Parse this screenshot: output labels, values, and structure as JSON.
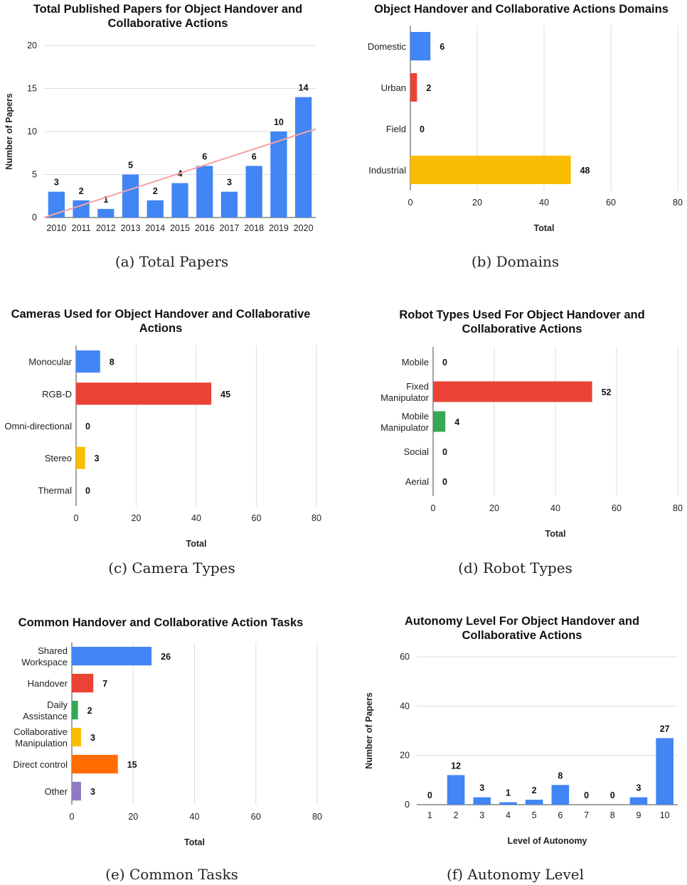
{
  "chart_data": [
    {
      "id": "a",
      "type": "bar",
      "orientation": "vertical",
      "title": [
        "Total Published Papers for Object Handover and",
        "Collaborative Actions"
      ],
      "ylabel": "Number of Papers",
      "xlabel": "",
      "categories": [
        "2010",
        "2011",
        "2012",
        "2013",
        "2014",
        "2015",
        "2016",
        "2017",
        "2018",
        "2019",
        "2020"
      ],
      "values": [
        3,
        2,
        1,
        5,
        2,
        4,
        6,
        3,
        6,
        10,
        14
      ],
      "ylim": [
        0,
        20
      ],
      "yticks": [
        0,
        5,
        10,
        15,
        20
      ],
      "colors": [
        "#4285F4"
      ],
      "trendline": {
        "type": "linear",
        "color": "#F4A3A3",
        "start": 0,
        "end": 10.3
      },
      "caption": "(a) Total Papers",
      "grid": true
    },
    {
      "id": "b",
      "type": "bar",
      "orientation": "horizontal",
      "title": [
        "Object Handover and Collaborative Actions Domains"
      ],
      "xlabel": "Total",
      "categories": [
        [
          "Domestic"
        ],
        [
          "Urban"
        ],
        [
          "Field"
        ],
        [
          "Industrial"
        ]
      ],
      "values": [
        6,
        2,
        0,
        48
      ],
      "xlim": [
        0,
        80
      ],
      "xticks": [
        0,
        20,
        40,
        60,
        80
      ],
      "colors": [
        "#4285F4",
        "#EA4335",
        "#34A853",
        "#FBBC04"
      ],
      "caption": "(b) Domains",
      "grid": true
    },
    {
      "id": "c",
      "type": "bar",
      "orientation": "horizontal",
      "title": [
        "Cameras Used for Object Handover and Collaborative",
        "Actions"
      ],
      "xlabel": "Total",
      "categories": [
        [
          "Monocular"
        ],
        [
          "RGB-D"
        ],
        [
          "Omni-directional"
        ],
        [
          "Stereo"
        ],
        [
          "Thermal"
        ]
      ],
      "values": [
        8,
        45,
        0,
        3,
        0
      ],
      "xlim": [
        0,
        80
      ],
      "xticks": [
        0,
        20,
        40,
        60,
        80
      ],
      "colors": [
        "#4285F4",
        "#EA4335",
        "#34A853",
        "#FBBC04",
        "#FF6D01"
      ],
      "caption": "(c) Camera Types",
      "grid": true
    },
    {
      "id": "d",
      "type": "bar",
      "orientation": "horizontal",
      "title": [
        "Robot Types Used For Object Handover and",
        "Collaborative Actions"
      ],
      "xlabel": "Total",
      "categories": [
        [
          "Mobile"
        ],
        [
          "Fixed",
          "Manipulator"
        ],
        [
          "Mobile",
          "Manipulator"
        ],
        [
          "Social"
        ],
        [
          "Aerial"
        ]
      ],
      "values": [
        0,
        52,
        4,
        0,
        0
      ],
      "xlim": [
        0,
        80
      ],
      "xticks": [
        0,
        20,
        40,
        60,
        80
      ],
      "colors": [
        "#4285F4",
        "#EA4335",
        "#34A853",
        "#FBBC04",
        "#FF6D01"
      ],
      "caption": "(d) Robot Types",
      "grid": true
    },
    {
      "id": "e",
      "type": "bar",
      "orientation": "horizontal",
      "title": [
        "Common Handover and Collaborative Action Tasks"
      ],
      "xlabel": "Total",
      "categories": [
        [
          "Shared",
          "Workspace"
        ],
        [
          "Handover"
        ],
        [
          "Daily",
          "Assistance"
        ],
        [
          "Collaborative",
          "Manipulation"
        ],
        [
          "Direct control"
        ],
        [
          "Other"
        ]
      ],
      "values": [
        26,
        7,
        2,
        3,
        15,
        3
      ],
      "xlim": [
        0,
        80
      ],
      "xticks": [
        0,
        20,
        40,
        60,
        80
      ],
      "colors": [
        "#4285F4",
        "#EA4335",
        "#34A853",
        "#FBBC04",
        "#FF6D01",
        "#8E7CC3"
      ],
      "caption": "(e) Common Tasks",
      "grid": true
    },
    {
      "id": "f",
      "type": "bar",
      "orientation": "vertical",
      "title": [
        "Autonomy Level For Object Handover and",
        "Collaborative Actions"
      ],
      "ylabel": "Number of Papers",
      "xlabel": "Level of Autonomy",
      "categories": [
        "1",
        "2",
        "3",
        "4",
        "5",
        "6",
        "7",
        "8",
        "9",
        "10"
      ],
      "values": [
        0,
        12,
        3,
        1,
        2,
        8,
        0,
        0,
        3,
        27
      ],
      "ylim": [
        0,
        60
      ],
      "yticks": [
        0,
        20,
        40,
        60
      ],
      "colors": [
        "#4285F4"
      ],
      "caption": "(f) Autonomy Level",
      "grid": true
    }
  ]
}
